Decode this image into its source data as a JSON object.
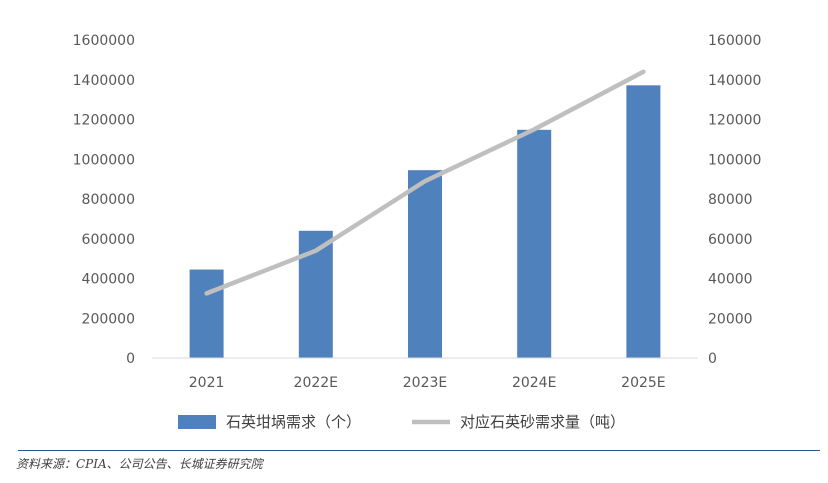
{
  "chart_data": {
    "type": "bar+line",
    "categories": [
      "2021",
      "2022E",
      "2023E",
      "2024E",
      "2025E"
    ],
    "series": [
      {
        "name": "石英坩埚需求（个）",
        "kind": "bar",
        "axis": "left",
        "color": "#4f81bd",
        "values": [
          445000,
          640000,
          945000,
          1148000,
          1372000
        ]
      },
      {
        "name": "对应石英砂需求量（吨）",
        "kind": "line",
        "axis": "right",
        "color": "#bfbfbf",
        "values": [
          32500,
          54000,
          89000,
          115000,
          144000
        ]
      }
    ],
    "y_left": {
      "min": 0,
      "max": 1600000,
      "ticks": [
        "0",
        "200000",
        "400000",
        "600000",
        "800000",
        "1000000",
        "1200000",
        "1400000",
        "1600000"
      ]
    },
    "y_right": {
      "min": 0,
      "max": 160000,
      "ticks": [
        "0",
        "20000",
        "40000",
        "60000",
        "80000",
        "100000",
        "120000",
        "140000",
        "160000"
      ]
    },
    "legend_position": "bottom",
    "grid": false
  },
  "source": "资料来源：CPIA、公司公告、长城证券研究院"
}
